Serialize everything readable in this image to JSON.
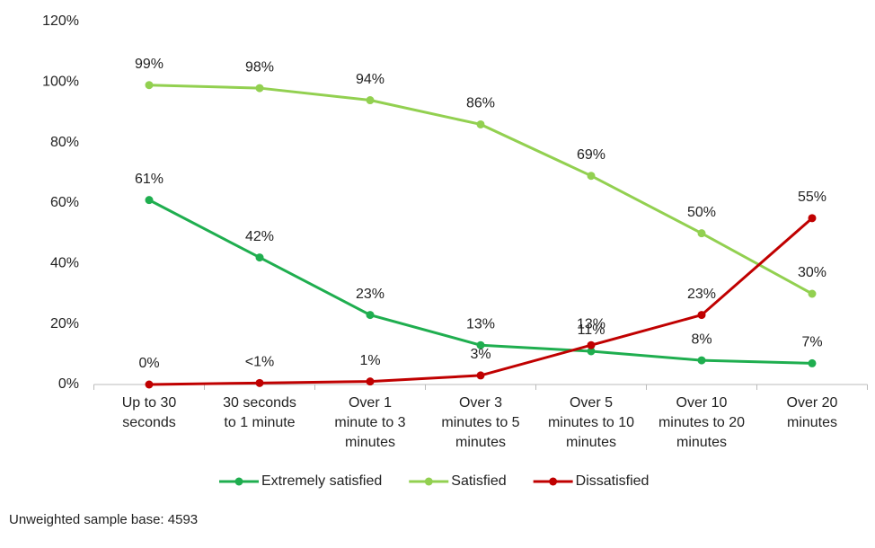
{
  "chart_data": {
    "type": "line",
    "categories": [
      "Up to 30 seconds",
      "30 seconds to 1 minute",
      "Over 1 minute to 3 minutes",
      "Over 3 minutes to 5 minutes",
      "Over 5 minutes to 10 minutes",
      "Over 10 minutes to 20 minutes",
      "Over 20 minutes"
    ],
    "series": [
      {
        "name": "Extremely satisfied",
        "color": "#1fae4f",
        "values": [
          61,
          42,
          23,
          13,
          11,
          8,
          7
        ],
        "value_labels": [
          "61%",
          "42%",
          "23%",
          "13%",
          "11%",
          "8%",
          "7%"
        ]
      },
      {
        "name": "Satisfied",
        "color": "#92d050",
        "values": [
          99,
          98,
          94,
          86,
          69,
          50,
          30
        ],
        "value_labels": [
          "99%",
          "98%",
          "94%",
          "86%",
          "69%",
          "50%",
          "30%"
        ]
      },
      {
        "name": "Dissatisfied",
        "color": "#c00000",
        "values": [
          0,
          0.5,
          1,
          3,
          13,
          23,
          55
        ],
        "value_labels": [
          "0%",
          "<1%",
          "1%",
          "3%",
          "13%",
          "23%",
          "55%"
        ]
      }
    ],
    "ylim": [
      0,
      120
    ],
    "yticks": [
      {
        "value": 0,
        "label": "0%"
      },
      {
        "value": 20,
        "label": "20%"
      },
      {
        "value": 40,
        "label": "40%"
      },
      {
        "value": 60,
        "label": "60%"
      },
      {
        "value": 80,
        "label": "80%"
      },
      {
        "value": 100,
        "label": "100%"
      },
      {
        "value": 120,
        "label": "120%"
      }
    ],
    "grid": false,
    "legend": "bottom",
    "footnote": "Unweighted sample base: 4593"
  }
}
